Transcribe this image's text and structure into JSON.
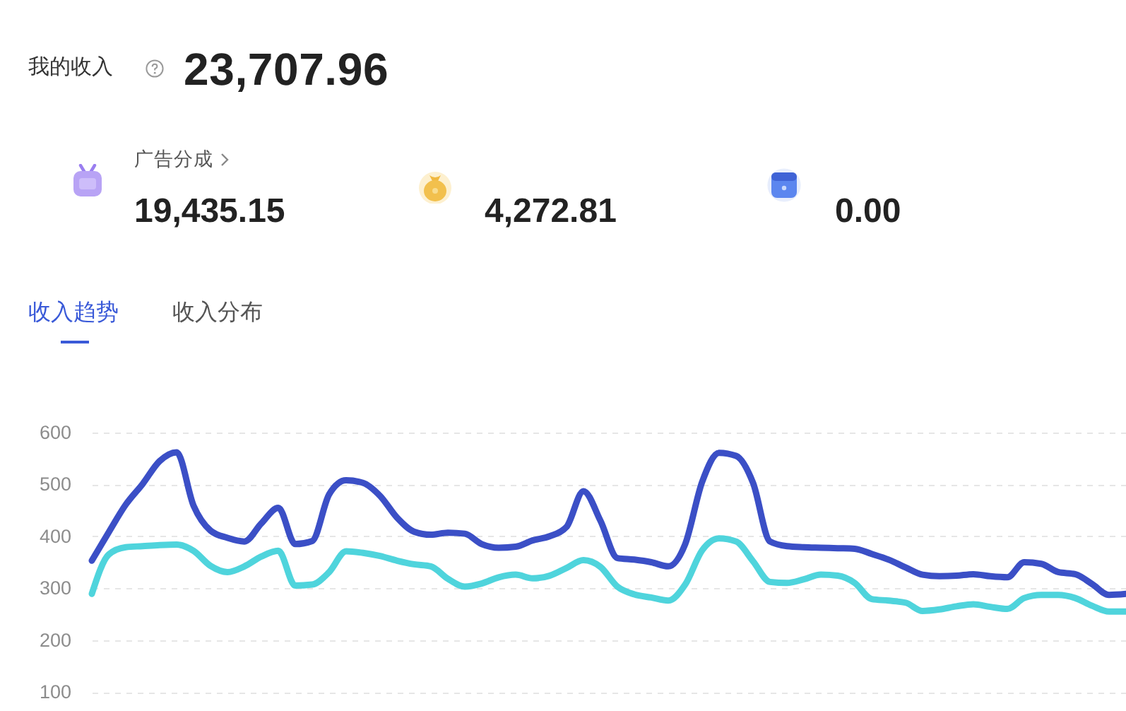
{
  "chart_data": [
    {
      "type": "other",
      "title": "我的收入",
      "annotations": [
        "23,707.96",
        "广告分成",
        "19,435.15",
        "4,272.81",
        "0.00"
      ]
    },
    {
      "type": "line",
      "annotations": [
        "收入趋势",
        "收入分布"
      ],
      "categories": [
        null,
        null,
        null,
        null,
        null,
        null,
        null,
        null,
        null,
        null,
        null,
        null,
        null,
        null,
        null,
        null,
        null,
        null,
        null,
        null,
        null,
        null,
        null,
        null,
        null,
        null,
        null,
        null,
        null,
        null,
        null,
        null,
        null,
        null,
        null,
        null,
        null,
        null,
        null,
        null,
        null,
        null,
        null,
        null,
        null,
        null,
        null,
        null,
        null,
        null,
        null,
        null,
        null,
        null,
        null,
        null,
        null,
        null,
        null,
        null,
        null,
        null
      ],
      "series": [
        {
          "color": "#3b4fc6",
          "values": [
            353,
            408,
            461,
            501,
            545,
            562,
            459,
            411,
            397,
            390,
            425,
            455,
            385,
            391,
            481,
            508,
            503,
            478,
            436,
            409,
            403,
            407,
            405,
            385,
            378,
            380,
            392,
            400,
            418,
            487,
            430,
            358,
            355,
            350,
            342,
            385,
            505,
            561,
            555,
            503,
            390,
            381,
            379,
            378,
            377,
            376,
            366,
            355,
            340,
            326,
            323,
            324,
            327,
            323,
            321,
            350,
            347,
            331,
            327,
            308,
            287,
            289
          ]
        },
        {
          "color": "#4fd4dc",
          "values": [
            289,
            365,
            379,
            381,
            383,
            384,
            372,
            343,
            331,
            342,
            361,
            372,
            305,
            307,
            331,
            371,
            368,
            362,
            353,
            346,
            342,
            318,
            303,
            309,
            321,
            326,
            319,
            324,
            339,
            354,
            341,
            303,
            288,
            282,
            276,
            307,
            373,
            396,
            390,
            352,
            312,
            310,
            317,
            326,
            324,
            310,
            279,
            276,
            272,
            256,
            259,
            265,
            269,
            264,
            260,
            281,
            287,
            287,
            281,
            266,
            255,
            255
          ]
        }
      ],
      "ylim": [
        100,
        600
      ],
      "yticks": [
        100,
        200,
        300,
        400,
        500,
        600
      ],
      "grid": "y"
    }
  ]
}
